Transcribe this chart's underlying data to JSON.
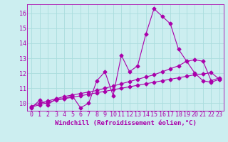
{
  "x": [
    0,
    1,
    2,
    3,
    4,
    5,
    6,
    7,
    8,
    9,
    10,
    11,
    12,
    13,
    14,
    15,
    16,
    17,
    18,
    19,
    20,
    21,
    22,
    23
  ],
  "line1": [
    9.7,
    10.2,
    9.9,
    10.3,
    10.3,
    10.5,
    9.7,
    10.0,
    11.5,
    12.1,
    10.5,
    13.2,
    12.1,
    12.5,
    14.6,
    16.3,
    15.8,
    15.3,
    13.6,
    12.8,
    12.0,
    11.5,
    11.4,
    11.6
  ],
  "line2": [
    9.8,
    10.0,
    10.15,
    10.3,
    10.45,
    10.55,
    10.65,
    10.75,
    10.85,
    11.0,
    11.15,
    11.3,
    11.45,
    11.6,
    11.75,
    11.9,
    12.1,
    12.3,
    12.5,
    12.8,
    12.9,
    12.8,
    11.5,
    11.7
  ],
  "line3": [
    9.75,
    9.9,
    10.05,
    10.2,
    10.3,
    10.4,
    10.5,
    10.6,
    10.7,
    10.8,
    10.9,
    11.0,
    11.1,
    11.2,
    11.3,
    11.4,
    11.5,
    11.6,
    11.7,
    11.8,
    11.9,
    11.95,
    12.05,
    11.6
  ],
  "line_color": "#aa00aa",
  "bg_color": "#cceef0",
  "grid_color": "#aadddd",
  "xlabel": "Windchill (Refroidissement éolien,°C)",
  "ylim": [
    9.5,
    16.6
  ],
  "xlim": [
    -0.5,
    23.5
  ],
  "yticks": [
    10,
    11,
    12,
    13,
    14,
    15,
    16
  ],
  "xticks": [
    0,
    1,
    2,
    3,
    4,
    5,
    6,
    7,
    8,
    9,
    10,
    11,
    12,
    13,
    14,
    15,
    16,
    17,
    18,
    19,
    20,
    21,
    22,
    23
  ],
  "marker": "D",
  "marker_size": 2.5,
  "line_width": 0.8,
  "font_size": 6,
  "xlabel_fontsize": 6.5
}
